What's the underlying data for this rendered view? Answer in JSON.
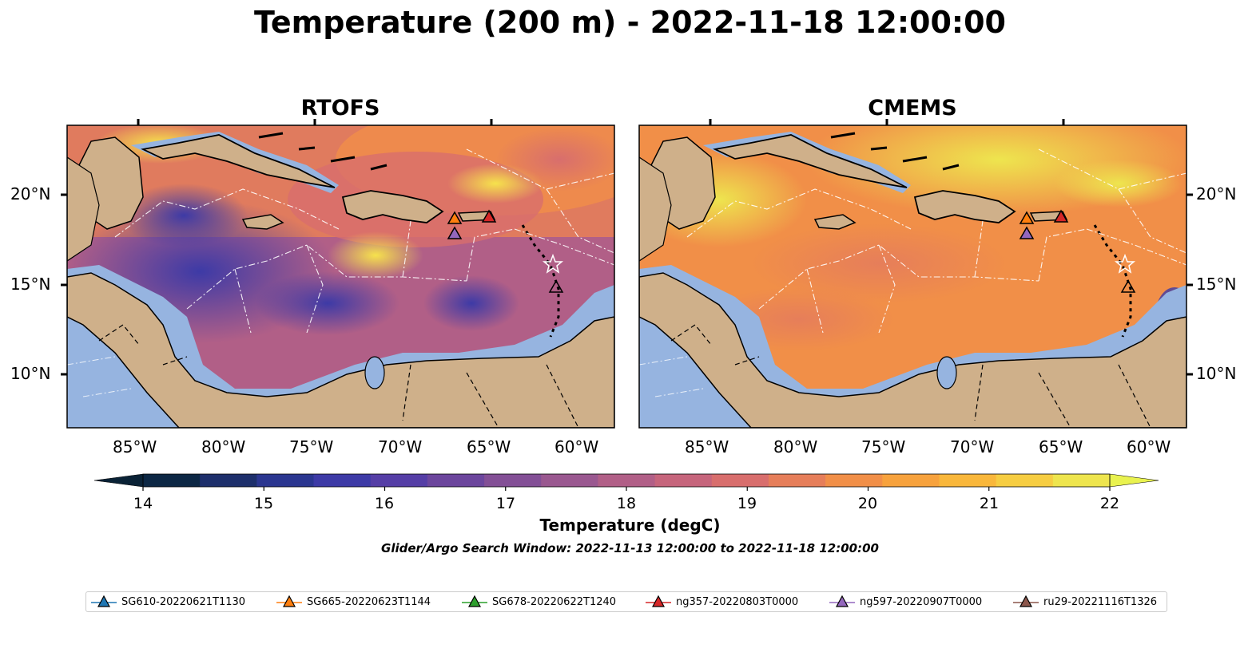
{
  "figure": {
    "title": "Temperature (200 m) - 2022-11-18 12:00:00",
    "colorbar_label": "Temperature (degC)",
    "search_window": "Glider/Argo Search Window: 2022-11-13 12:00:00 to 2022-11-18 12:00:00"
  },
  "panels": [
    {
      "title": "RTOFS"
    },
    {
      "title": "CMEMS"
    }
  ],
  "axes": {
    "lon_labels": [
      "85°W",
      "80°W",
      "75°W",
      "70°W",
      "65°W",
      "60°W"
    ],
    "lat_labels": [
      "20°N",
      "15°N",
      "10°N"
    ]
  },
  "colorbar": {
    "ticks": [
      "14",
      "15",
      "16",
      "17",
      "18",
      "19",
      "20",
      "21",
      "22"
    ],
    "colors": [
      "#0c2744",
      "#1d2f6b",
      "#2b3690",
      "#3d3aa6",
      "#553ea6",
      "#6c469d",
      "#834f96",
      "#9a5890",
      "#b15f87",
      "#c6657c",
      "#d86e6d",
      "#e67e5a",
      "#f18f48",
      "#f7a23d",
      "#f9b73b",
      "#f6cd42",
      "#eee54e"
    ],
    "under_color": "#0a2236",
    "over_color": "#e9f24f"
  },
  "legend": [
    {
      "label": "SG610-20220621T1130",
      "color": "#1f77b4"
    },
    {
      "label": "SG665-20220623T1144",
      "color": "#ff7f0e"
    },
    {
      "label": "SG678-20220622T1240",
      "color": "#2ca02c"
    },
    {
      "label": "ng357-20220803T0000",
      "color": "#d62728"
    },
    {
      "label": "ng597-20220907T0000",
      "color": "#9467bd"
    },
    {
      "label": "ru29-20221116T1326",
      "color": "#8c564b"
    }
  ],
  "colors": {
    "land": "#cfb08a",
    "shelf": "#96b4e0",
    "deep_land_shadow": "#062232"
  }
}
